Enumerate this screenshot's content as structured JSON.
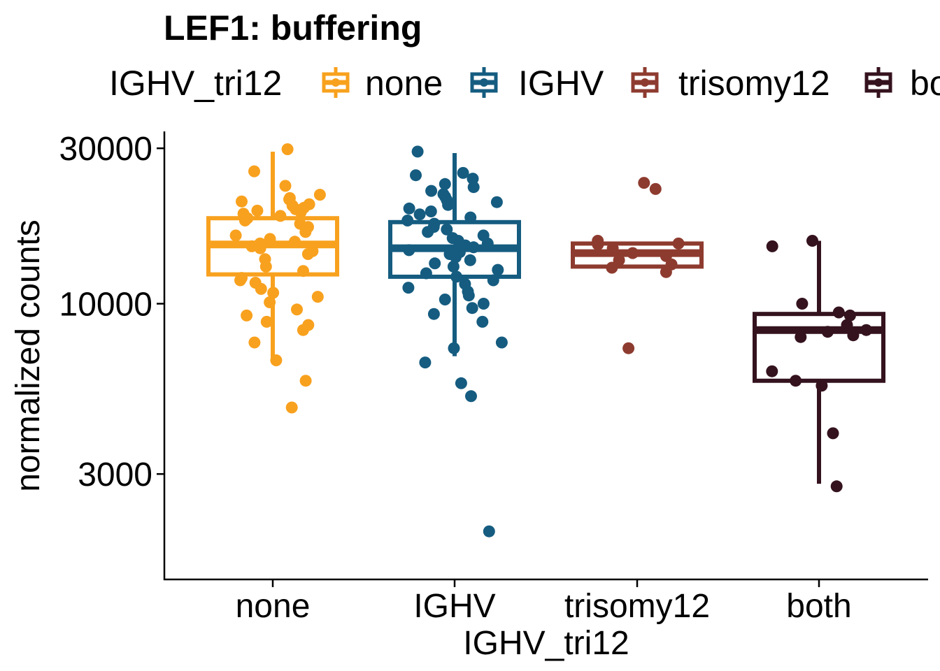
{
  "chart_data": {
    "type": "box",
    "title": "LEF1: buffering",
    "xlabel": "IGHV_tri12",
    "ylabel": "normalized counts",
    "y_scale": "log10",
    "y_ticks": [
      3000,
      10000,
      30000
    ],
    "y_tick_labels": [
      "3000",
      "10000",
      "30000"
    ],
    "ylim": [
      1500,
      32000
    ],
    "legend": {
      "title": "IGHV_tri12",
      "placement": "top",
      "entries": [
        "none",
        "IGHV",
        "trisomy12",
        "both"
      ]
    },
    "categories": [
      "none",
      "IGHV",
      "trisomy12",
      "both"
    ],
    "colors": {
      "none": "#F8A11E",
      "IGHV": "#155C80",
      "trisomy12": "#8E3B2F",
      "both": "#34121E"
    },
    "series": [
      {
        "name": "none",
        "box": {
          "whisker_low": 6700,
          "q1": 12300,
          "median": 15200,
          "q3": 18300,
          "whisker_high": 29300
        },
        "points": [
          29800,
          25500,
          23000,
          21600,
          21100,
          20900,
          20600,
          20200,
          20000,
          19700,
          19500,
          19300,
          19100,
          18900,
          18600,
          18300,
          18000,
          17600,
          17200,
          16600,
          16200,
          15800,
          15500,
          15300,
          15000,
          14800,
          14500,
          14200,
          13700,
          13000,
          12600,
          12000,
          11800,
          11600,
          11100,
          10800,
          10500,
          10100,
          9600,
          9200,
          8800,
          8600,
          8300,
          7600,
          6700,
          5800,
          4800
        ]
      },
      {
        "name": "IGHV",
        "box": {
          "whisker_low": 6900,
          "q1": 12100,
          "median": 14800,
          "q3": 17800,
          "whisker_high": 29000
        },
        "points": [
          29300,
          25200,
          24800,
          24200,
          23300,
          22800,
          22200,
          21700,
          21300,
          20800,
          20500,
          20100,
          19600,
          19200,
          18800,
          18400,
          18000,
          17600,
          17200,
          16900,
          16600,
          16200,
          15900,
          15600,
          15300,
          15100,
          14900,
          14600,
          14400,
          14200,
          13900,
          13600,
          13300,
          13000,
          12700,
          12400,
          12100,
          11800,
          11500,
          11200,
          10900,
          10600,
          10300,
          10000,
          9700,
          9300,
          8800,
          7600,
          7300,
          6600,
          5700,
          5200,
          2000
        ]
      },
      {
        "name": "trisomy12",
        "box": {
          "whisker_low": 13000,
          "q1": 13000,
          "median": 14300,
          "q3": 15300,
          "whisker_high": 15300
        },
        "points": [
          23500,
          22500,
          15600,
          15300,
          15200,
          14800,
          14300,
          14000,
          13600,
          13200,
          12900,
          12500,
          7300
        ]
      },
      {
        "name": "both",
        "box": {
          "whisker_low": 2800,
          "q1": 5800,
          "median": 8300,
          "q3": 9300,
          "whisker_high": 15600
        },
        "points": [
          15600,
          15000,
          10000,
          9400,
          9200,
          8600,
          8300,
          8200,
          8000,
          7900,
          6200,
          5800,
          5600,
          4000,
          2750
        ]
      }
    ]
  }
}
